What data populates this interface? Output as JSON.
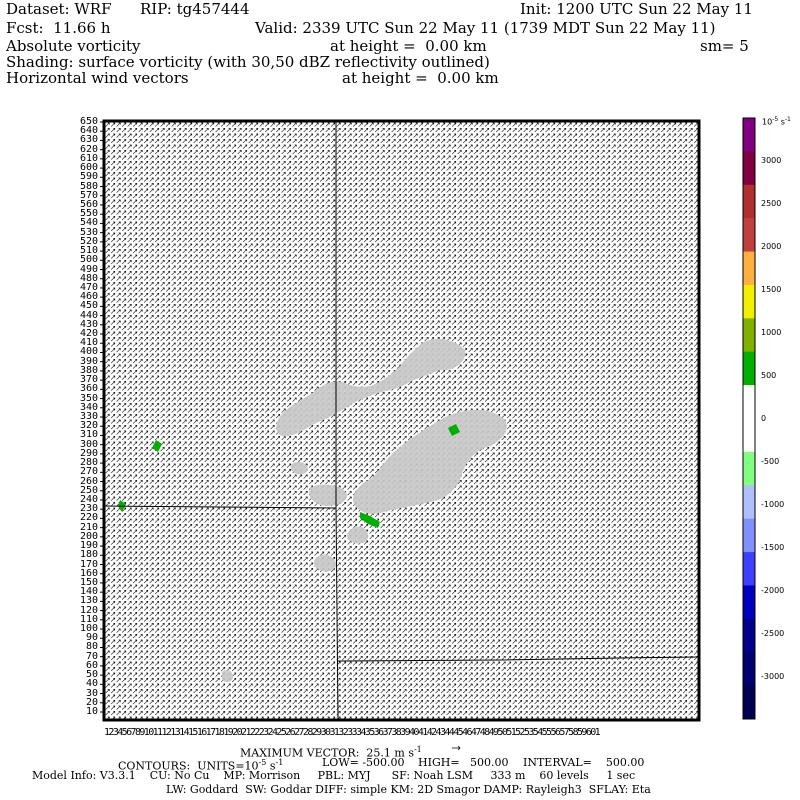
{
  "header": {
    "dataset": "Dataset: WRF",
    "rip": "RIP: tg457444",
    "init": "Init: 1200 UTC Sun 22 May 11",
    "fcst": "Fcst:  11.66 h",
    "valid": "Valid: 2339 UTC Sun 22 May 11 (1739 MDT Sun 22 May 11)",
    "field1": "Absolute vorticity",
    "field1_height": "at height =  0.00 km",
    "smoothing": "sm= 5",
    "shading": "Shading: surface vorticity (with 30,50 dBZ reflectivity outlined)",
    "field2": "Horizontal wind vectors",
    "field2_height": "at height =  0.00 km"
  },
  "footer": {
    "max_vector": "MAXIMUM VECTOR:  25.1 m s",
    "max_vector_exp": "-1",
    "contours": "CONTOURS:  UNITS=10",
    "contours_exp": "-5",
    "contours_rest": " s",
    "contours_rest_exp": "-1",
    "low": "LOW= -500.00",
    "high": "HIGH=   500.00",
    "interval": "INTERVAL=    500.00",
    "model_info": "Model Info: V3.3.1    CU: No Cu    MP: Morrison     PBL: MYJ      SF: Noah LSM     333 m    60 levels     1 sec",
    "physics": "LW: Goddard  SW: Goddar DIFF: simple KM: 2D Smagor DAMP: Rayleigh3  SFLAY: Eta"
  },
  "chart_data": {
    "type": "heatmap",
    "title": "Absolute vorticity / surface vorticity with horizontal wind vectors",
    "y_ticks": [
      10,
      20,
      30,
      40,
      50,
      60,
      70,
      80,
      90,
      100,
      110,
      120,
      130,
      140,
      150,
      160,
      170,
      180,
      190,
      200,
      210,
      220,
      230,
      240,
      250,
      260,
      270,
      280,
      290,
      300,
      310,
      320,
      330,
      340,
      350,
      360,
      370,
      380,
      390,
      400,
      410,
      420,
      430,
      440,
      450,
      460,
      470,
      480,
      490,
      500,
      510,
      520,
      530,
      540,
      550,
      560,
      570,
      580,
      590,
      600,
      610,
      620,
      630,
      640,
      650
    ],
    "ylim": [
      10,
      650
    ],
    "x_tick_text": "1234567891011121314151617181920212223242526272829303132333435363738394041424344454647484950515253545556575859601",
    "colorbar": {
      "unit_label": "10",
      "unit_exp": "-5",
      "unit_suffix": "s",
      "unit_suffix_exp": "-1",
      "labels": [
        "3000",
        "2500",
        "2000",
        "1500",
        "1000",
        "500",
        "0",
        "-500",
        "-1000",
        "-1500",
        "-2000",
        "-2500",
        "-3000"
      ],
      "colors": [
        "#800080",
        "#800040",
        "#b03030",
        "#c04040",
        "#ffb040",
        "#f0f000",
        "#80b000",
        "#00b000",
        "#ffffff",
        "#ffffff",
        "#80ff80",
        "#b0c0ff",
        "#8090ff",
        "#4040ff",
        "#0000c0",
        "#00008a",
        "#000070",
        "#000050"
      ]
    },
    "reflectivity_color": "#c8c8c8",
    "vorticity_positive_color": "#00b000"
  }
}
